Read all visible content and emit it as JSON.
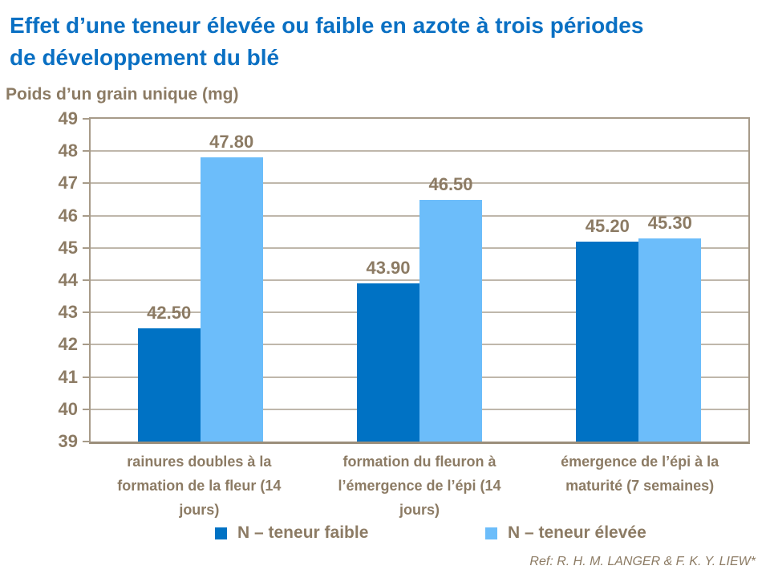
{
  "header": {
    "title_line1": "Effet d’une teneur élevée ou faible en azote à trois périodes",
    "title_line2": "de développement du blé"
  },
  "chart_data": {
    "type": "bar",
    "title": "Effet d’une teneur élevée ou faible en azote à trois périodes de développement du blé",
    "ylabel": "Poids d’un grain unique (mg)",
    "xlabel": "",
    "categories": [
      "rainures doubles à la formation de la fleur (14 jours)",
      "formation du fleuron à l’émergence de l’épi (14 jours)",
      "émergence de l’épi à la maturité (7 semaines)"
    ],
    "series": [
      {
        "name": "N – teneur faible",
        "color": "#0072C4",
        "values": [
          42.5,
          43.9,
          45.2
        ]
      },
      {
        "name": "N – teneur élevée",
        "color": "#6CBDFA",
        "values": [
          47.8,
          46.5,
          45.3
        ]
      }
    ],
    "ylim": [
      39,
      49
    ],
    "yticks": [
      39,
      40,
      41,
      42,
      43,
      44,
      45,
      46,
      47,
      48,
      49
    ],
    "grid": true,
    "legend_position": "bottom",
    "value_label_decimals": 2
  },
  "reference": "Ref: R. H. M. LANGER & F. K. Y. LIEW*",
  "colors": {
    "title_blue": "#0A70C3",
    "text_brown": "#8C7B64",
    "grid": "#BFB7AB",
    "axis": "#A79B89",
    "axis_strong": "#9B8E7B",
    "series_low": "#0072C4",
    "series_high": "#6CBDFA"
  }
}
